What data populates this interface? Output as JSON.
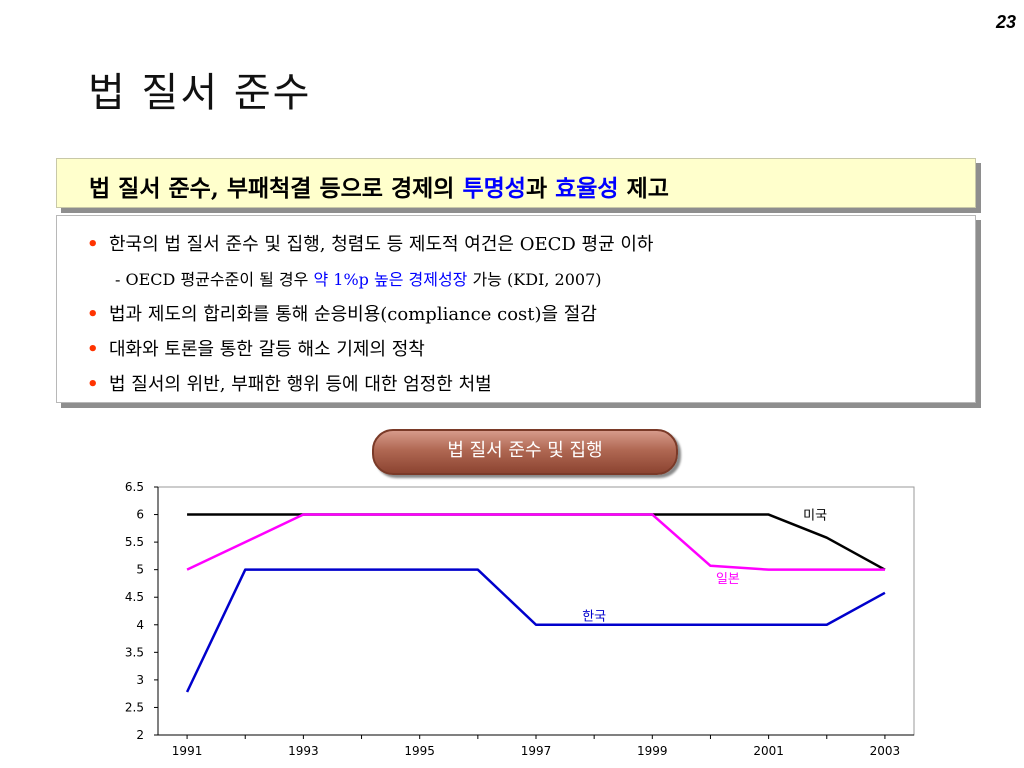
{
  "page_number": "23",
  "title": "법 질서 준수",
  "banner": {
    "part1": "법 질서 준수, 부패척결 등으로 경제의 ",
    "highlight1": "투명성",
    "part2": "과 ",
    "highlight2": "효율성",
    "part3": " 제고"
  },
  "bullets": {
    "b1": "한국의 법 질서 준수 및 집행, 청렴도 등 제도적 여건은 OECD 평균 이하",
    "sub_prefix": "- OECD 평균수준이 될 경우 ",
    "sub_highlight": "약 1%p 높은 경제성장",
    "sub_suffix": " 가능 (KDI, 2007)",
    "b2": "법과 제도의 합리화를 통해 순응비용(compliance cost)을 절감",
    "b3": "대화와 토론을 통한 갈등 해소 기제의 정착",
    "b4": "법 질서의 위반, 부패한 행위 등에 대한 엄정한 처벌",
    "bullet_symbol": "•"
  },
  "chart_button_label": "법 질서 준수 및 집행",
  "colors": {
    "bullet": "#ff3300",
    "highlight": "#0000ff",
    "usa": "#000000",
    "japan": "#ff00ff",
    "korea": "#0000cc"
  },
  "chart_data": {
    "type": "line",
    "x": [
      1991,
      1992,
      1993,
      1994,
      1995,
      1996,
      1997,
      1998,
      1999,
      2000,
      2001,
      2002,
      2003
    ],
    "x_ticks": [
      "1991",
      "1993",
      "1995",
      "1997",
      "1999",
      "2001",
      "2003"
    ],
    "y_ticks": [
      "6.5",
      "6",
      "5.5",
      "5",
      "4.5",
      "4",
      "3.5",
      "3",
      "2.5",
      "2"
    ],
    "ylim": [
      2,
      6.5
    ],
    "grid": false,
    "series": [
      {
        "name": "미국",
        "color": "#000000",
        "values": [
          6,
          6,
          6,
          6,
          6,
          6,
          6,
          6,
          6,
          6,
          6,
          5.58,
          5
        ]
      },
      {
        "name": "일본",
        "color": "#ff00ff",
        "values": [
          5,
          5.5,
          6,
          6,
          6,
          6,
          6,
          6,
          6,
          5.07,
          5,
          5,
          5
        ]
      },
      {
        "name": "한국",
        "color": "#0000cc",
        "values": [
          2.78,
          5,
          5,
          5,
          5,
          5,
          4,
          4,
          4,
          4,
          4,
          4,
          4.58
        ]
      }
    ]
  }
}
